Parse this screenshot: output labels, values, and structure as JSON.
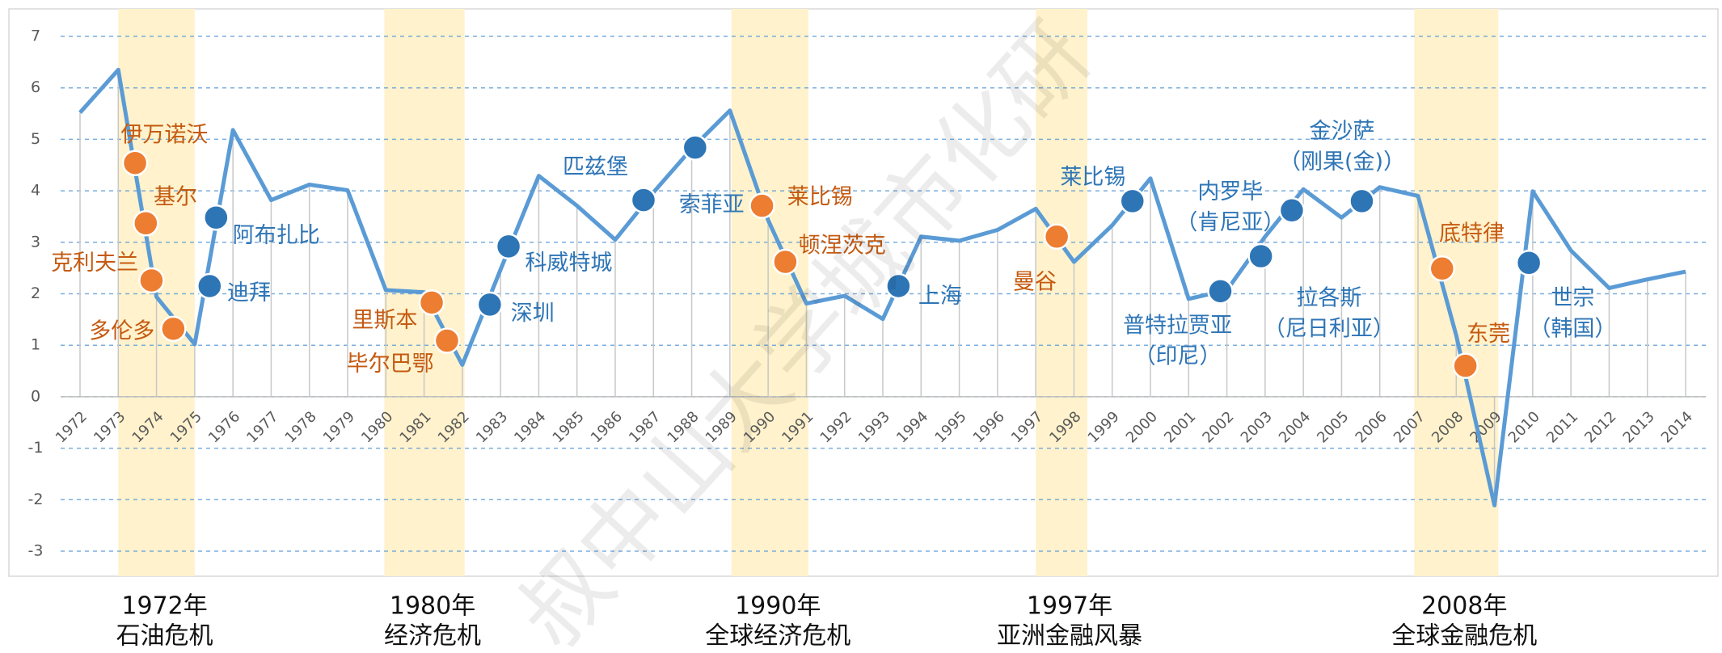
{
  "chart_data": {
    "type": "line",
    "x": [
      1972,
      1973,
      1974,
      1975,
      1976,
      1977,
      1978,
      1979,
      1980,
      1981,
      1982,
      1983,
      1984,
      1985,
      1986,
      1987,
      1988,
      1989,
      1990,
      1991,
      1992,
      1993,
      1994,
      1995,
      1996,
      1997,
      1998,
      1999,
      2000,
      2001,
      2002,
      2003,
      2004,
      2005,
      2006,
      2007,
      2008,
      2009,
      2010,
      2011,
      2012,
      2013,
      2014
    ],
    "values": [
      5.52,
      6.35,
      1.94,
      1.02,
      5.18,
      3.82,
      4.12,
      4.01,
      2.07,
      2.03,
      0.62,
      2.47,
      4.29,
      3.71,
      3.05,
      3.97,
      4.82,
      5.56,
      3.43,
      1.81,
      1.96,
      1.51,
      3.11,
      3.03,
      3.24,
      3.65,
      2.62,
      3.33,
      4.24,
      1.9,
      2.07,
      3.11,
      4.03,
      3.48,
      4.07,
      3.9,
      1.19,
      -2.11,
      3.99,
      2.84,
      2.11,
      2.28,
      2.43
    ],
    "color": "#5b9bd5",
    "xlim": [
      1972,
      2014
    ],
    "ylim": [
      -3,
      7
    ],
    "yticks": [
      -3,
      -2,
      -1,
      0,
      1,
      2,
      3,
      4,
      5,
      6,
      7
    ],
    "grid": true,
    "points": [
      {
        "label": [
          "伊万诺沃"
        ],
        "x": 1973.44,
        "y": 4.54,
        "color": "#ed7d31"
      },
      {
        "label": [
          "基尔"
        ],
        "x": 1973.72,
        "y": 3.37,
        "color": "#ed7d31"
      },
      {
        "label": [
          "克利夫兰"
        ],
        "x": 1973.87,
        "y": 2.26,
        "color": "#ed7d31"
      },
      {
        "label": [
          "多伦多"
        ],
        "x": 1974.44,
        "y": 1.32,
        "color": "#ed7d31"
      },
      {
        "label": [
          "迪拜"
        ],
        "x": 1975.39,
        "y": 2.15,
        "color": "#2e75b6"
      },
      {
        "label": [
          "阿布扎比"
        ],
        "x": 1975.56,
        "y": 3.48,
        "color": "#2e75b6"
      },
      {
        "label": [
          "里斯本"
        ],
        "x": 1981.2,
        "y": 1.83,
        "color": "#ed7d31"
      },
      {
        "label": [
          "毕尔巴鄂"
        ],
        "x": 1981.6,
        "y": 1.09,
        "color": "#ed7d31"
      },
      {
        "label": [
          "深圳"
        ],
        "x": 1982.72,
        "y": 1.79,
        "color": "#2e75b6"
      },
      {
        "label": [
          "科威特城"
        ],
        "x": 1983.21,
        "y": 2.92,
        "color": "#2e75b6"
      },
      {
        "label": [
          "匹兹堡"
        ],
        "x": 1986.74,
        "y": 3.82,
        "color": "#2e75b6"
      },
      {
        "label": [
          "索菲亚"
        ],
        "x": 1988.09,
        "y": 4.84,
        "color": "#2e75b6"
      },
      {
        "label": [
          "莱比锡"
        ],
        "x": 1989.84,
        "y": 3.71,
        "color": "#ed7d31"
      },
      {
        "label": [
          "顿涅茨克"
        ],
        "x": 1990.45,
        "y": 2.62,
        "color": "#ed7d31"
      },
      {
        "label": [
          "上海"
        ],
        "x": 1993.41,
        "y": 2.15,
        "color": "#2e75b6"
      },
      {
        "label": [
          "曼谷"
        ],
        "x": 1997.55,
        "y": 3.11,
        "color": "#ed7d31"
      },
      {
        "label": [
          "莱比锡"
        ],
        "x": 1999.53,
        "y": 3.8,
        "color": "#2e75b6"
      },
      {
        "label": [
          "普特拉贾亚",
          "（印尼）"
        ],
        "x": 2001.83,
        "y": 2.05,
        "color": "#2e75b6"
      },
      {
        "label": [
          "拉各斯",
          "（尼日利亚）"
        ],
        "x": 2002.89,
        "y": 2.73,
        "color": "#2e75b6"
      },
      {
        "label": [
          "内罗毕",
          "（肯尼亚）"
        ],
        "x": 2003.7,
        "y": 3.62,
        "color": "#2e75b6"
      },
      {
        "label": [
          "金沙萨",
          "（刚果(金)）"
        ],
        "x": 2005.53,
        "y": 3.8,
        "color": "#2e75b6"
      },
      {
        "label": [
          "底特律"
        ],
        "x": 2007.63,
        "y": 2.49,
        "color": "#ed7d31"
      },
      {
        "label": [
          "东莞"
        ],
        "x": 2008.24,
        "y": 0.6,
        "color": "#ed7d31"
      },
      {
        "label": [
          "世宗",
          "（韩国）"
        ],
        "x": 2009.9,
        "y": 2.6,
        "color": "#2e75b6"
      }
    ],
    "bands": [
      {
        "start": 1973,
        "end": 1975,
        "label": [
          "1972年",
          "石油危机"
        ]
      },
      {
        "start": 1979.96,
        "end": 1982.06,
        "label": [
          "1980年",
          "经济危机"
        ]
      },
      {
        "start": 1989.04,
        "end": 1991.05,
        "label": [
          "1990年",
          "全球经济危机"
        ]
      },
      {
        "start": 1997,
        "end": 1998.35,
        "label": [
          "1997年",
          "亚洲金融风暴"
        ]
      },
      {
        "start": 2006.9,
        "end": 2009.1,
        "label": [
          "2008年",
          "全球金融危机"
        ]
      }
    ],
    "band_color": "#fff2cc",
    "watermark": "叔中山大学城市化研"
  }
}
